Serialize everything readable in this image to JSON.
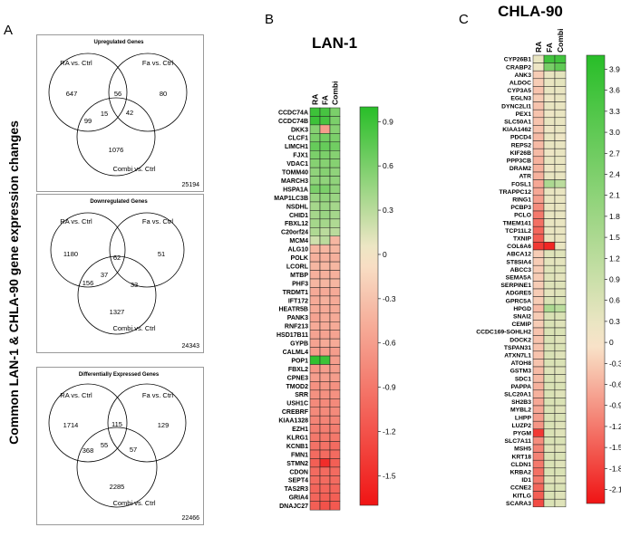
{
  "panel_labels": {
    "a": "A",
    "b": "B",
    "c": "C"
  },
  "side_title": "Common LAN-1 & CHLA-90 gene expression changes",
  "venns": [
    {
      "title": "Upregulated Genes",
      "set1": "RA vs. Ctrl",
      "set2": "Fa vs. Ctrl",
      "set3": "Combi vs. Ctrl",
      "only1": "647",
      "only2": "80",
      "only3": "1076",
      "r12": "56",
      "r13": "99",
      "r23": "42",
      "r123": "15",
      "total": "25194"
    },
    {
      "title": "Downregulated Genes",
      "set1": "RA vs. Ctrl",
      "set2": "Fa vs. Ctrl",
      "set3": "Combi vs. Ctrl",
      "only1": "1180",
      "only2": "51",
      "only3": "1327",
      "r12": "62",
      "r13": "156",
      "r23": "33",
      "r123": "37",
      "total": "24343"
    },
    {
      "title": "Differentially Expressed Genes",
      "set1": "RA vs. Ctrl",
      "set2": "Fa vs. Ctrl",
      "set3": "Combi vs. Ctrl",
      "only1": "1714",
      "only2": "129",
      "only3": "2285",
      "r12": "115",
      "r13": "368",
      "r23": "57",
      "r123": "55",
      "total": "22466"
    }
  ],
  "heatmaps": [
    {
      "title": "LAN-1",
      "columns": [
        "RA",
        "FA",
        "Combi"
      ],
      "colorbar_ticks": [
        "0.9",
        "0.6",
        "0.3",
        "0",
        "-0.3",
        "-0.6",
        "-0.9",
        "-1.2",
        "-1.5"
      ],
      "colorbar_range": [
        -1.7,
        1.0
      ],
      "genes": [
        "CCDC74A",
        "CCDC74B",
        "DKK3",
        "CLCF1",
        "LIMCH1",
        "FJX1",
        "VDAC1",
        "TOMM40",
        "MARCH3",
        "HSPA1A",
        "MAP1LC3B",
        "NSDHL",
        "CHID1",
        "FBXL12",
        "C20orf24",
        "MCM4",
        "ALG10",
        "POLK",
        "LCORL",
        "MTBP",
        "PHF3",
        "TRDMT1",
        "IFT172",
        "HEATR5B",
        "PANK3",
        "RNF213",
        "HSD17B11",
        "GYPB",
        "CALML4",
        "POP1",
        "FBXL2",
        "CPNE3",
        "TMOD2",
        "SRR",
        "USH1C",
        "CREBRF",
        "KIAA1328",
        "EZH1",
        "KLRG1",
        "KCNB1",
        "FMN1",
        "STMN2",
        "CDON",
        "SEPT4",
        "TAS2R3",
        "GRIA4",
        "DNAJC27"
      ],
      "values": [
        [
          0.9,
          0.85,
          0.6
        ],
        [
          0.9,
          0.85,
          0.6
        ],
        [
          0.55,
          -0.6,
          0.55
        ],
        [
          0.6,
          0.65,
          0.6
        ],
        [
          0.7,
          0.7,
          0.65
        ],
        [
          0.6,
          0.6,
          0.55
        ],
        [
          0.55,
          0.55,
          0.55
        ],
        [
          0.5,
          0.55,
          0.5
        ],
        [
          0.5,
          0.5,
          0.5
        ],
        [
          0.6,
          0.6,
          0.5
        ],
        [
          0.45,
          0.5,
          0.45
        ],
        [
          0.4,
          0.45,
          0.4
        ],
        [
          0.4,
          0.45,
          0.4
        ],
        [
          0.4,
          0.4,
          0.35
        ],
        [
          0.35,
          0.3,
          0.3
        ],
        [
          0.2,
          0.3,
          -0.4
        ],
        [
          -0.4,
          -0.4,
          -0.4
        ],
        [
          -0.45,
          -0.45,
          -0.45
        ],
        [
          -0.4,
          -0.4,
          -0.4
        ],
        [
          -0.45,
          -0.45,
          -0.45
        ],
        [
          -0.4,
          -0.4,
          -0.4
        ],
        [
          -0.5,
          -0.5,
          -0.5
        ],
        [
          -0.5,
          -0.45,
          -0.5
        ],
        [
          -0.5,
          -0.5,
          -0.5
        ],
        [
          -0.55,
          -0.5,
          -0.5
        ],
        [
          -0.5,
          -0.5,
          -0.5
        ],
        [
          -0.55,
          -0.55,
          -0.55
        ],
        [
          -0.55,
          -0.5,
          -0.5
        ],
        [
          -0.6,
          -0.6,
          -0.6
        ],
        [
          0.95,
          0.9,
          -0.6
        ],
        [
          -0.65,
          -0.6,
          -0.6
        ],
        [
          -0.6,
          -0.6,
          -0.6
        ],
        [
          -0.7,
          -0.65,
          -0.7
        ],
        [
          -0.7,
          -0.7,
          -0.7
        ],
        [
          -0.75,
          -0.75,
          -0.75
        ],
        [
          -0.75,
          -0.75,
          -0.75
        ],
        [
          -0.8,
          -0.8,
          -0.8
        ],
        [
          -0.85,
          -0.85,
          -0.85
        ],
        [
          -0.9,
          -0.9,
          -0.9
        ],
        [
          -0.95,
          -0.95,
          -1.0
        ],
        [
          -1.0,
          -1.0,
          -1.0
        ],
        [
          -1.1,
          -1.5,
          -1.1
        ],
        [
          -1.0,
          -1.0,
          -1.0
        ],
        [
          -1.0,
          -1.0,
          -1.0
        ],
        [
          -1.05,
          -1.05,
          -1.05
        ],
        [
          -1.05,
          -1.1,
          -1.1
        ],
        [
          -1.1,
          -1.2,
          -1.15
        ]
      ]
    },
    {
      "title": "CHLA-90",
      "columns": [
        "RA",
        "FA",
        "Combi"
      ],
      "colorbar_ticks": [
        "3.9",
        "3.6",
        "3.3",
        "3.0",
        "2.7",
        "2.4",
        "2.1",
        "1.8",
        "1.5",
        "1.2",
        "0.9",
        "0.6",
        "0.3",
        "0",
        "-0.3",
        "-0.6",
        "-0.9",
        "-1.2",
        "-1.5",
        "-1.8",
        "-2.1"
      ],
      "colorbar_range": [
        -2.3,
        4.1
      ],
      "genes": [
        "CYP26B1",
        "CRABP2",
        "ANK3",
        "ALDOC",
        "CYP3A5",
        "EGLN3",
        "DYNC2LI1",
        "PEX1",
        "SLC50A1",
        "KIAA1462",
        "PDCD4",
        "REPS2",
        "KIF26B",
        "PPP3CB",
        "DRAM2",
        "ATR",
        "FOSL1",
        "TRAPPC12",
        "RING1",
        "PCBP3",
        "PCLO",
        "TMEM141",
        "TCP11L2",
        "TXNIP",
        "COL6A6",
        "ABCA12",
        "ST8SIA4",
        "ABCC3",
        "SEMA5A",
        "SERPINE1",
        "ADGRE5",
        "GPRC5A",
        "HPGD",
        "SNAI2",
        "CEMIP",
        "CCDC169-SOHLH2",
        "DOCK2",
        "TSPAN31",
        "ATXN7L1",
        "ATOH8",
        "GSTM3",
        "SDC1",
        "PAPPA",
        "SLC20A1",
        "SH2B3",
        "MYBL2",
        "LHPP",
        "LUZP2",
        "PYGM",
        "SLC7A11",
        "MSH5",
        "KRT18",
        "CLDN1",
        "KRBA2",
        "ID1",
        "CCNE2",
        "KITLG",
        "SCARA3"
      ],
      "values": [
        [
          0.3,
          3.6,
          3.6
        ],
        [
          0.2,
          2.5,
          3.0
        ],
        [
          -0.3,
          0.3,
          0.4
        ],
        [
          -0.3,
          0.3,
          0.4
        ],
        [
          -0.4,
          0.3,
          0.3
        ],
        [
          -0.3,
          0.2,
          0.3
        ],
        [
          -0.4,
          0.3,
          0.3
        ],
        [
          -0.4,
          0.2,
          0.3
        ],
        [
          -0.4,
          0.3,
          0.3
        ],
        [
          -0.4,
          0.2,
          0.3
        ],
        [
          -0.5,
          0.3,
          0.2
        ],
        [
          -0.5,
          0.3,
          0.3
        ],
        [
          -0.5,
          0.2,
          0.3
        ],
        [
          -0.6,
          0.3,
          0.3
        ],
        [
          -0.6,
          0.2,
          0.3
        ],
        [
          -0.6,
          0.3,
          0.3
        ],
        [
          -0.7,
          1.5,
          1.2
        ],
        [
          -0.7,
          0.3,
          0.3
        ],
        [
          -0.8,
          0.3,
          0.3
        ],
        [
          -1.0,
          0.3,
          0.3
        ],
        [
          -1.2,
          0.3,
          0.3
        ],
        [
          -1.3,
          0.3,
          0.3
        ],
        [
          -1.4,
          0.3,
          0.3
        ],
        [
          -1.5,
          0.3,
          0.3
        ],
        [
          -1.9,
          -2.1,
          0.3
        ],
        [
          -0.3,
          0.5,
          0.5
        ],
        [
          -0.3,
          0.4,
          0.4
        ],
        [
          -0.3,
          0.5,
          0.5
        ],
        [
          -0.3,
          0.5,
          0.4
        ],
        [
          -0.3,
          0.5,
          0.5
        ],
        [
          -0.3,
          0.4,
          0.5
        ],
        [
          -0.3,
          0.6,
          0.6
        ],
        [
          -0.5,
          1.5,
          1.2
        ],
        [
          -0.3,
          0.6,
          0.6
        ],
        [
          -0.3,
          0.6,
          0.5
        ],
        [
          -0.4,
          0.6,
          0.6
        ],
        [
          -0.4,
          0.6,
          0.5
        ],
        [
          -0.4,
          0.6,
          0.6
        ],
        [
          -0.4,
          0.6,
          0.5
        ],
        [
          -0.4,
          0.6,
          0.6
        ],
        [
          -0.5,
          0.5,
          0.5
        ],
        [
          -0.5,
          0.6,
          0.5
        ],
        [
          -0.6,
          0.6,
          0.6
        ],
        [
          -0.6,
          0.6,
          0.5
        ],
        [
          -0.7,
          0.6,
          0.6
        ],
        [
          -0.7,
          0.6,
          0.5
        ],
        [
          -0.8,
          0.6,
          0.6
        ],
        [
          -0.9,
          0.6,
          0.5
        ],
        [
          -1.9,
          0.6,
          0.5
        ],
        [
          -1.0,
          0.6,
          0.6
        ],
        [
          -1.1,
          0.5,
          0.5
        ],
        [
          -1.1,
          0.6,
          0.6
        ],
        [
          -1.2,
          0.6,
          0.5
        ],
        [
          -1.3,
          0.6,
          0.6
        ],
        [
          -1.2,
          0.5,
          0.5
        ],
        [
          -1.4,
          0.6,
          0.6
        ],
        [
          -1.5,
          0.6,
          0.5
        ],
        [
          -1.7,
          0.6,
          0.5
        ]
      ]
    }
  ]
}
